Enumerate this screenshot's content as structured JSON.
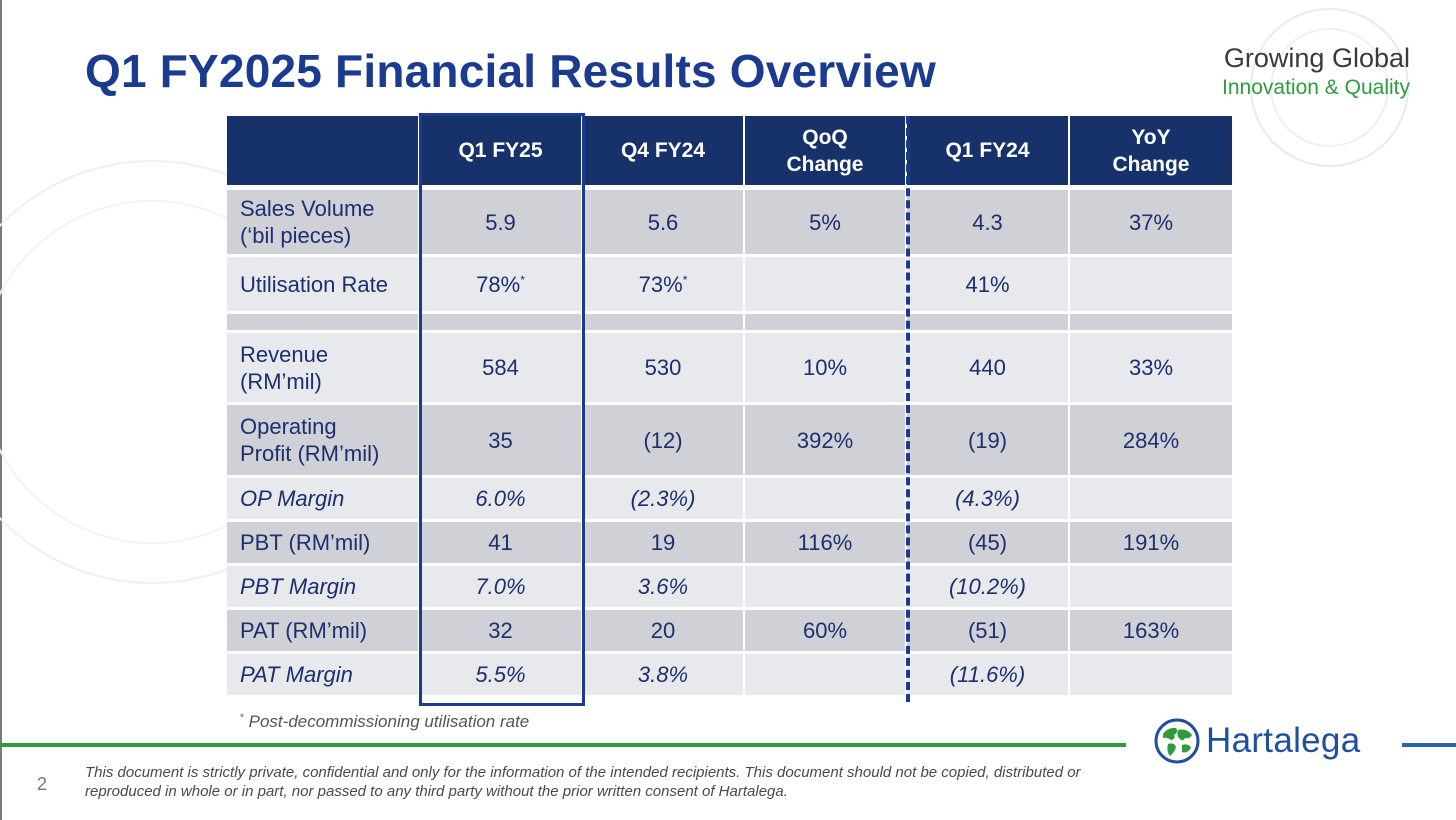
{
  "slide": {
    "title": "Q1 FY2025 Financial Results Overview",
    "tagline_line1": "Growing Global",
    "tagline_line2": "Innovation & Quality",
    "page_number": "2",
    "brand": "Hartalega",
    "footnote_marker": "*",
    "footnote_text": "Post-decommissioning utilisation rate",
    "disclaimer": "This document is strictly private, confidential and only for the information of the intended recipients. This document should not be copied, distributed or reproduced in whole or in part, nor passed to any third party without the prior written consent of Hartalega."
  },
  "colors": {
    "title": "#1a3b8f",
    "header_bg": "#17316b",
    "row_dark": "#cfd1d6",
    "row_light": "#e8e9ec",
    "tagline_green": "#2e9c3c",
    "divider_green": "#2f9c3c",
    "brand_blue": "#1f4f9e"
  },
  "table": {
    "headers": [
      "",
      "Q1 FY25",
      "Q4 FY24",
      "QoQ\nChange",
      "Q1 FY24",
      "YoY\nChange"
    ],
    "rows": [
      {
        "label": "Sales Volume\n(‘bil pieces)",
        "cells": [
          "5.9",
          "5.6",
          "5%",
          "4.3",
          "37%"
        ]
      },
      {
        "label": "Utilisation Rate",
        "cells": [
          "78%",
          "73%",
          "",
          "41%",
          ""
        ],
        "superscripts": [
          "*",
          "*",
          "",
          "",
          ""
        ]
      },
      {
        "label": "",
        "cells": [
          "",
          "",
          "",
          "",
          ""
        ]
      },
      {
        "label": "Revenue\n(RM’mil)",
        "cells": [
          "584",
          "530",
          "10%",
          "440",
          "33%"
        ]
      },
      {
        "label": "Operating\nProfit (RM’mil)",
        "cells": [
          "35",
          "(12)",
          "392%",
          "(19)",
          "284%"
        ]
      },
      {
        "label": "OP Margin",
        "cells": [
          "6.0%",
          "(2.3%)",
          "",
          "(4.3%)",
          ""
        ]
      },
      {
        "label": "PBT (RM’mil)",
        "cells": [
          "41",
          "19",
          "116%",
          "(45)",
          "191%"
        ]
      },
      {
        "label": "PBT Margin",
        "cells": [
          "7.0%",
          "3.6%",
          "",
          "(10.2%)",
          ""
        ]
      },
      {
        "label": "PAT (RM’mil)",
        "cells": [
          "32",
          "20",
          "60%",
          "(51)",
          "163%"
        ]
      },
      {
        "label": "PAT Margin",
        "cells": [
          "5.5%",
          "3.8%",
          "",
          "(11.6%)",
          ""
        ]
      }
    ]
  }
}
